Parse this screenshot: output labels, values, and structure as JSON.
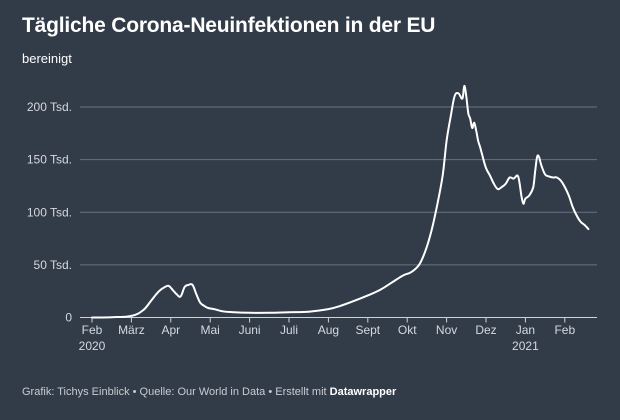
{
  "chart_data": {
    "type": "line",
    "title": "Tägliche Corona-Neuinfektionen in der EU",
    "subtitle": "bereinigt",
    "xlabel": "",
    "ylabel": "",
    "ylim": [
      0,
      220000
    ],
    "y_ticks": [
      {
        "value": 0,
        "label": "0"
      },
      {
        "value": 50000,
        "label": "50 Tsd."
      },
      {
        "value": 100000,
        "label": "100 Tsd."
      },
      {
        "value": 150000,
        "label": "150 Tsd."
      },
      {
        "value": 200000,
        "label": "200 Tsd."
      }
    ],
    "x_ticks": [
      {
        "month": 0,
        "label": "Feb",
        "year": "2020"
      },
      {
        "month": 1,
        "label": "März",
        "year": ""
      },
      {
        "month": 2,
        "label": "Apr",
        "year": ""
      },
      {
        "month": 3,
        "label": "Mai",
        "year": ""
      },
      {
        "month": 4,
        "label": "Juni",
        "year": ""
      },
      {
        "month": 5,
        "label": "Juli",
        "year": ""
      },
      {
        "month": 6,
        "label": "Aug",
        "year": ""
      },
      {
        "month": 7,
        "label": "Sept",
        "year": ""
      },
      {
        "month": 8,
        "label": "Okt",
        "year": ""
      },
      {
        "month": 9,
        "label": "Nov",
        "year": ""
      },
      {
        "month": 10,
        "label": "Dez",
        "year": ""
      },
      {
        "month": 11,
        "label": "Jan",
        "year": "2021"
      },
      {
        "month": 12,
        "label": "Feb",
        "year": ""
      }
    ],
    "series": [
      {
        "name": "Neuinfektionen",
        "x_unit": "months since 1 Feb 2020",
        "x": [
          0,
          0.5,
          1.0,
          1.3,
          1.5,
          1.7,
          1.85,
          1.95,
          2.05,
          2.15,
          2.25,
          2.35,
          2.45,
          2.55,
          2.65,
          2.75,
          2.85,
          2.95,
          3.1,
          3.3,
          3.6,
          4.0,
          4.5,
          5.0,
          5.5,
          6.0,
          6.3,
          6.6,
          7.0,
          7.3,
          7.6,
          7.9,
          8.1,
          8.3,
          8.45,
          8.6,
          8.75,
          8.9,
          9.0,
          9.1,
          9.2,
          9.3,
          9.4,
          9.45,
          9.5,
          9.55,
          9.6,
          9.65,
          9.7,
          9.75,
          9.8,
          9.85,
          9.9,
          10.0,
          10.1,
          10.2,
          10.3,
          10.4,
          10.5,
          10.6,
          10.7,
          10.8,
          10.85,
          10.9,
          10.95,
          11.0,
          11.1,
          11.2,
          11.25,
          11.3,
          11.35,
          11.4,
          11.5,
          11.6,
          11.7,
          11.8,
          11.9,
          12.0,
          12.1,
          12.2,
          12.3,
          12.4,
          12.5,
          12.6
        ],
        "y": [
          0,
          300,
          1500,
          7000,
          16000,
          25000,
          29000,
          30000,
          26000,
          22000,
          20000,
          29000,
          31000,
          31000,
          22000,
          14000,
          11000,
          9000,
          8000,
          6000,
          5000,
          4500,
          4500,
          5000,
          5500,
          8000,
          11000,
          15000,
          21000,
          26000,
          33000,
          40000,
          43000,
          50000,
          62000,
          80000,
          105000,
          135000,
          168000,
          190000,
          210000,
          213000,
          208000,
          220000,
          210000,
          194000,
          189000,
          180000,
          185000,
          178000,
          168000,
          162000,
          155000,
          142000,
          135000,
          127000,
          122000,
          124000,
          127000,
          133000,
          132000,
          135000,
          128000,
          115000,
          108000,
          113000,
          116000,
          124000,
          140000,
          153000,
          152000,
          145000,
          136000,
          134000,
          133000,
          133000,
          130000,
          124000,
          116000,
          105000,
          97000,
          91000,
          88000,
          84000
        ]
      }
    ]
  },
  "footer": {
    "prefix": "Grafik: Tichys Einblick • Quelle: Our World in Data • Erstellt mit ",
    "brand": "Datawrapper"
  },
  "colors": {
    "background": "#323b48",
    "line": "#ffffff",
    "grid": "#6a7380",
    "axis_text": "#d6d9de"
  }
}
